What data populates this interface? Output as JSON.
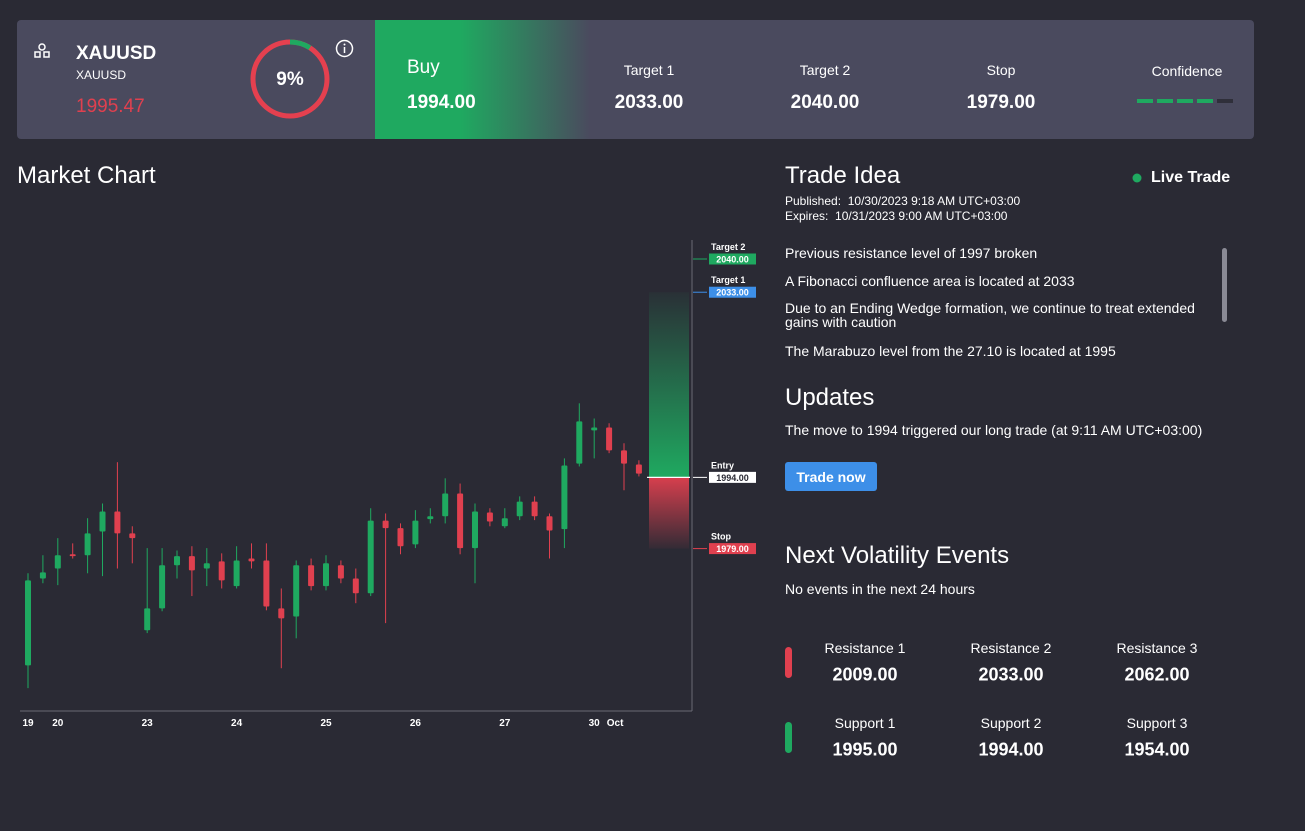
{
  "header": {
    "symbol": "XAUUSD",
    "subtitle": "XAUUSD",
    "price": "1995.47",
    "sentiment": {
      "value": 9,
      "label": "9%"
    },
    "direction": "Buy",
    "entry": "1994.00",
    "levels": [
      {
        "label": "Target 1",
        "value": "2033.00"
      },
      {
        "label": "Target 2",
        "value": "2040.00"
      },
      {
        "label": "Stop",
        "value": "1979.00"
      }
    ],
    "confidence": {
      "label": "Confidence",
      "value": 4,
      "max": 5
    }
  },
  "chart_data": {
    "type": "candlestick",
    "title": "Market Chart",
    "categories": [
      "19",
      null,
      "20",
      null,
      null,
      null,
      null,
      null,
      "23",
      null,
      null,
      null,
      null,
      null,
      "24",
      null,
      null,
      null,
      null,
      null,
      "25",
      null,
      null,
      null,
      null,
      null,
      "26",
      null,
      null,
      null,
      null,
      null,
      "27",
      null,
      null,
      null,
      null,
      null,
      "30",
      "Oct",
      null,
      null
    ],
    "candles": [
      {
        "open": 1954.4,
        "high": 1973.8,
        "low": 1949.6,
        "close": 1972.3
      },
      {
        "open": 1972.7,
        "high": 1977.6,
        "low": 1971.7,
        "close": 1974.0
      },
      {
        "open": 1974.8,
        "high": 1981.2,
        "low": 1971.3,
        "close": 1977.6
      },
      {
        "open": 1977.8,
        "high": 1980.1,
        "low": 1976.9,
        "close": 1977.4
      },
      {
        "open": 1977.6,
        "high": 1985.4,
        "low": 1973.8,
        "close": 1982.2
      },
      {
        "open": 1982.6,
        "high": 1988.5,
        "low": 1973.2,
        "close": 1986.8
      },
      {
        "open": 1986.8,
        "high": 1997.2,
        "low": 1974.8,
        "close": 1982.2
      },
      {
        "open": 1982.2,
        "high": 1983.7,
        "low": 1975.9,
        "close": 1981.2
      },
      {
        "open": 1961.8,
        "high": 1979.1,
        "low": 1961.2,
        "close": 1966.4
      },
      {
        "open": 1966.4,
        "high": 1979.1,
        "low": 1965.8,
        "close": 1975.5
      },
      {
        "open": 1975.5,
        "high": 1978.6,
        "low": 1972.7,
        "close": 1977.4
      },
      {
        "open": 1977.4,
        "high": 1979.5,
        "low": 1969.0,
        "close": 1974.4
      },
      {
        "open": 1974.8,
        "high": 1979.1,
        "low": 1971.1,
        "close": 1975.9
      },
      {
        "open": 1976.3,
        "high": 1978.0,
        "low": 1970.6,
        "close": 1972.3
      },
      {
        "open": 1971.1,
        "high": 1979.5,
        "low": 1970.6,
        "close": 1976.5
      },
      {
        "open": 1976.9,
        "high": 1980.1,
        "low": 1974.8,
        "close": 1976.3
      },
      {
        "open": 1976.5,
        "high": 1980.1,
        "low": 1966.0,
        "close": 1966.8
      },
      {
        "open": 1966.4,
        "high": 1970.6,
        "low": 1953.8,
        "close": 1964.3
      },
      {
        "open": 1964.7,
        "high": 1976.5,
        "low": 1960.1,
        "close": 1975.5
      },
      {
        "open": 1975.5,
        "high": 1976.9,
        "low": 1970.2,
        "close": 1971.1
      },
      {
        "open": 1971.1,
        "high": 1977.6,
        "low": 1970.2,
        "close": 1975.9
      },
      {
        "open": 1975.5,
        "high": 1976.5,
        "low": 1971.7,
        "close": 1972.7
      },
      {
        "open": 1972.7,
        "high": 1974.8,
        "low": 1967.5,
        "close": 1969.6
      },
      {
        "open": 1969.6,
        "high": 1987.5,
        "low": 1969.0,
        "close": 1984.9
      },
      {
        "open": 1984.9,
        "high": 1986.4,
        "low": 1963.3,
        "close": 1983.3
      },
      {
        "open": 1983.3,
        "high": 1984.3,
        "low": 1977.8,
        "close": 1979.5
      },
      {
        "open": 1979.9,
        "high": 1987.1,
        "low": 1979.1,
        "close": 1984.9
      },
      {
        "open": 1985.2,
        "high": 1987.5,
        "low": 1984.3,
        "close": 1985.8
      },
      {
        "open": 1985.8,
        "high": 1993.8,
        "low": 1984.3,
        "close": 1990.6
      },
      {
        "open": 1990.6,
        "high": 1992.7,
        "low": 1977.8,
        "close": 1979.1
      },
      {
        "open": 1979.1,
        "high": 1988.5,
        "low": 1971.7,
        "close": 1986.8
      },
      {
        "open": 1986.6,
        "high": 1987.5,
        "low": 1983.7,
        "close": 1984.7
      },
      {
        "open": 1983.7,
        "high": 1987.5,
        "low": 1983.3,
        "close": 1985.4
      },
      {
        "open": 1985.8,
        "high": 1990.0,
        "low": 1985.0,
        "close": 1988.9
      },
      {
        "open": 1988.9,
        "high": 1990.0,
        "low": 1985.0,
        "close": 1985.8
      },
      {
        "open": 1985.8,
        "high": 1986.4,
        "low": 1976.9,
        "close": 1982.8
      },
      {
        "open": 1983.1,
        "high": 1998.0,
        "low": 1979.1,
        "close": 1996.5
      },
      {
        "open": 1996.9,
        "high": 2009.6,
        "low": 1996.3,
        "close": 2005.8
      },
      {
        "open": 2003.9,
        "high": 2006.4,
        "low": 1998.0,
        "close": 2004.5
      },
      {
        "open": 2004.5,
        "high": 2005.4,
        "low": 1999.1,
        "close": 1999.7
      },
      {
        "open": 1999.7,
        "high": 2001.2,
        "low": 1991.3,
        "close": 1996.9
      },
      {
        "open": 1996.7,
        "high": 1997.6,
        "low": 1994.2,
        "close": 1994.8
      }
    ],
    "ylim": [
      1945,
      2044
    ],
    "colors": {
      "up": "#1fa960",
      "down": "#e0404f"
    },
    "levels": [
      {
        "name": "Target 2",
        "value": 2040,
        "label": "2040.00",
        "color": "#1fa960"
      },
      {
        "name": "Target 1",
        "value": 2033,
        "label": "2033.00",
        "color": "#3d8fe8"
      },
      {
        "name": "Entry",
        "value": 1994,
        "label": "1994.00",
        "color": "#ffffff"
      },
      {
        "name": "Stop",
        "value": 1979,
        "label": "1979.00",
        "color": "#e0404f"
      }
    ]
  },
  "trade_idea": {
    "title": "Trade Idea",
    "status": "Live Trade",
    "published": {
      "label": "Published:",
      "value": "10/30/2023 9:18 AM UTC+03:00"
    },
    "expires": {
      "label": "Expires:",
      "value": "10/31/2023 9:00 AM UTC+03:00"
    },
    "points": [
      "Previous resistance level of 1997 broken",
      "A Fibonacci confluence area is located at 2033",
      "Due to an Ending Wedge formation, we continue to treat extended gains with caution",
      "The Marabuzo level from the 27.10 is located at 1995"
    ]
  },
  "updates": {
    "title": "Updates",
    "text": "The move to 1994 triggered our long trade (at 9:11 AM UTC+03:00)"
  },
  "button": "Trade now",
  "volatility": {
    "title": "Next Volatility Events",
    "text": "No events in the next 24 hours"
  },
  "resistance": [
    {
      "label": "Resistance 1",
      "value": "2009.00"
    },
    {
      "label": "Resistance 2",
      "value": "2033.00"
    },
    {
      "label": "Resistance 3",
      "value": "2062.00"
    }
  ],
  "support": [
    {
      "label": "Support 1",
      "value": "1995.00"
    },
    {
      "label": "Support 2",
      "value": "1994.00"
    },
    {
      "label": "Support 3",
      "value": "1954.00"
    }
  ]
}
